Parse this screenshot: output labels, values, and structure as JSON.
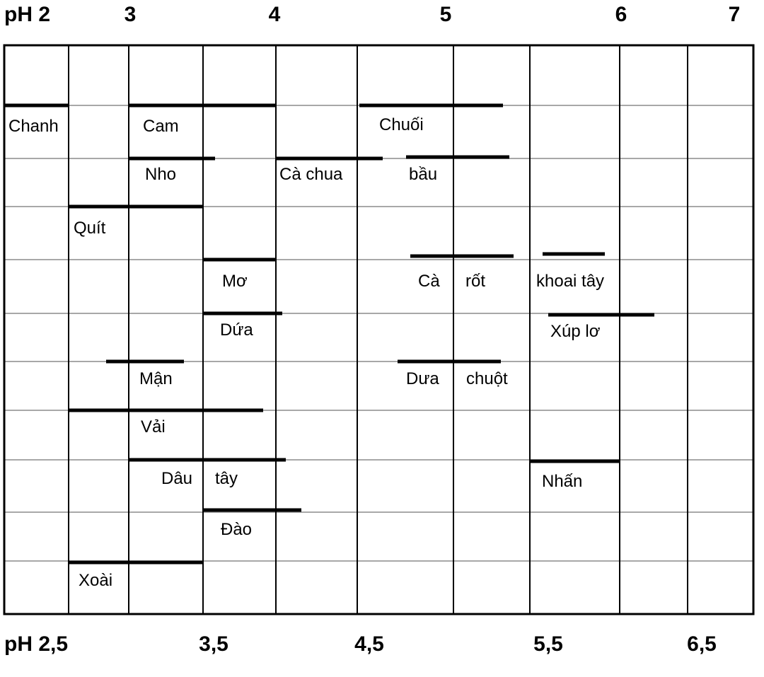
{
  "chart_data": {
    "type": "range-bar",
    "title": "",
    "xlabel": "",
    "ylabel": "",
    "x_range": [
      2,
      7
    ],
    "top_ticks": [
      {
        "label": "pH 2",
        "value": 2
      },
      {
        "label": "3",
        "value": 3
      },
      {
        "label": "4",
        "value": 4
      },
      {
        "label": "5",
        "value": 5
      },
      {
        "label": "6",
        "value": 6
      },
      {
        "label": "7",
        "value": 7
      }
    ],
    "bottom_ticks": [
      {
        "label": "pH 2,5",
        "value": 2.5
      },
      {
        "label": "3,5",
        "value": 3.5
      },
      {
        "label": "4,5",
        "value": 4.5
      },
      {
        "label": "5,5",
        "value": 5.5
      },
      {
        "label": "6,5",
        "value": 6.5
      }
    ],
    "vertical_gridlines": [
      2.1,
      2.5,
      2.7,
      3.0,
      3.5,
      3.8,
      4.0,
      4.5,
      4.8,
      5.0,
      5.5
    ],
    "grid": true,
    "rows": 11,
    "items": [
      {
        "label": "Chanh",
        "row": 1,
        "start": 2.0,
        "end": 2.1,
        "label_at": 2.05
      },
      {
        "label": "Cam",
        "row": 1,
        "start": 2.7,
        "end": 3.5,
        "label_at": 2.9
      },
      {
        "label": "Chuối",
        "row": 1,
        "start": 4.5,
        "end": 5.2,
        "label_at": 4.85
      },
      {
        "label": "Nho",
        "row": 2,
        "start": 2.7,
        "end": 3.2,
        "label_at": 2.9
      },
      {
        "label": "Cà chua",
        "row": 2,
        "start": 4.0,
        "end": 4.6,
        "label_at": 4.2
      },
      {
        "label": "bầu",
        "row": 2,
        "start": 4.7,
        "end": 5.3,
        "label_at": 4.95
      },
      {
        "label": "Quít",
        "row": 3,
        "start": 2.1,
        "end": 3.0,
        "label_at": 2.24
      },
      {
        "label": "Mơ",
        "row": 4,
        "start": 3.0,
        "end": 3.5,
        "label_at": 3.2
      },
      {
        "label": "Cà",
        "row": 4,
        "start": 4.8,
        "end": 5.5,
        "label_at": 4.9
      },
      {
        "label": "rốt",
        "row": 4,
        "start": null,
        "end": null,
        "label_at": 5.15
      },
      {
        "label": "khoai tây",
        "row": 4,
        "start": 5.5,
        "end": 6.2,
        "label_at": 5.85
      },
      {
        "label": "Dứa",
        "row": 5,
        "start": 3.0,
        "end": 3.5,
        "label_at": 3.2
      },
      {
        "label": "Xúp lơ",
        "row": 5,
        "start": 5.6,
        "end": 6.8,
        "label_at": 5.95
      },
      {
        "label": "Mận",
        "row": 6,
        "start": 2.5,
        "end": 3.0,
        "label_at": 2.9
      },
      {
        "label": "Dưa",
        "row": 6,
        "start": 4.7,
        "end": 5.3,
        "label_at": 4.85
      },
      {
        "label": "chuột",
        "row": 6,
        "start": null,
        "end": null,
        "label_at": 5.2
      },
      {
        "label": "Vải",
        "row": 7,
        "start": 2.1,
        "end": 3.5,
        "label_at": 2.85
      },
      {
        "label": "Dâu",
        "row": 8,
        "start": 2.7,
        "end": 3.5,
        "label_at": 3.0
      },
      {
        "label": "tây",
        "row": 8,
        "start": null,
        "end": null,
        "label_at": 3.15
      },
      {
        "label": "Nhấn",
        "row": 8,
        "start": 5.5,
        "end": 6.0,
        "label_at": 5.65
      },
      {
        "label": "Đào",
        "row": 9,
        "start": 3.0,
        "end": 3.6,
        "label_at": 3.2
      },
      {
        "label": "Xoài",
        "row": 10,
        "start": 2.1,
        "end": 2.7,
        "label_at": 2.25
      }
    ]
  }
}
